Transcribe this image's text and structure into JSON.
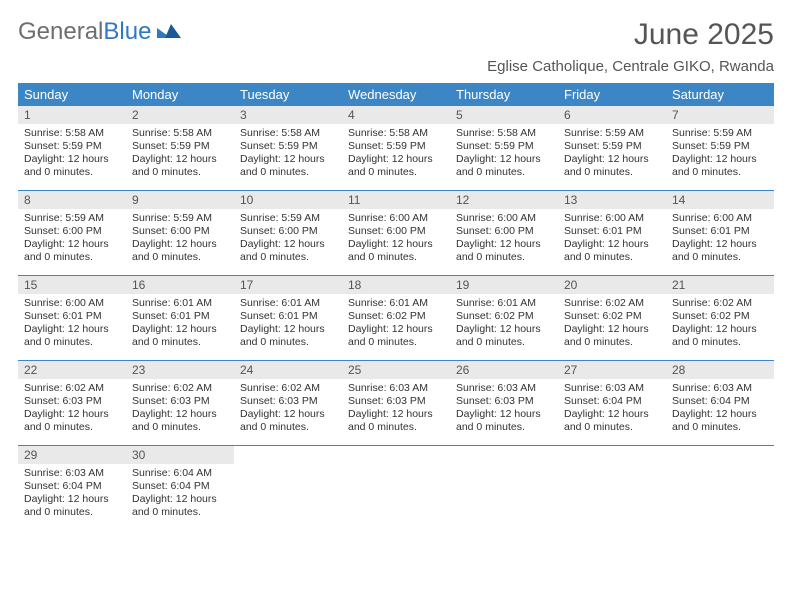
{
  "brand": {
    "part1": "General",
    "part2": "Blue"
  },
  "title": "June 2025",
  "subtitle": "Eglise Catholique, Centrale GIKO, Rwanda",
  "header_bg": "#3d86c6",
  "header_fg": "#ffffff",
  "daynum_bg": "#e9e9e9",
  "border_color": "#3d86c6",
  "text_color": "#333333",
  "day_names": [
    "Sunday",
    "Monday",
    "Tuesday",
    "Wednesday",
    "Thursday",
    "Friday",
    "Saturday"
  ],
  "weeks": [
    [
      {
        "n": "1",
        "sr": "5:58 AM",
        "ss": "5:59 PM",
        "dl": "12 hours and 0 minutes."
      },
      {
        "n": "2",
        "sr": "5:58 AM",
        "ss": "5:59 PM",
        "dl": "12 hours and 0 minutes."
      },
      {
        "n": "3",
        "sr": "5:58 AM",
        "ss": "5:59 PM",
        "dl": "12 hours and 0 minutes."
      },
      {
        "n": "4",
        "sr": "5:58 AM",
        "ss": "5:59 PM",
        "dl": "12 hours and 0 minutes."
      },
      {
        "n": "5",
        "sr": "5:58 AM",
        "ss": "5:59 PM",
        "dl": "12 hours and 0 minutes."
      },
      {
        "n": "6",
        "sr": "5:59 AM",
        "ss": "5:59 PM",
        "dl": "12 hours and 0 minutes."
      },
      {
        "n": "7",
        "sr": "5:59 AM",
        "ss": "5:59 PM",
        "dl": "12 hours and 0 minutes."
      }
    ],
    [
      {
        "n": "8",
        "sr": "5:59 AM",
        "ss": "6:00 PM",
        "dl": "12 hours and 0 minutes."
      },
      {
        "n": "9",
        "sr": "5:59 AM",
        "ss": "6:00 PM",
        "dl": "12 hours and 0 minutes."
      },
      {
        "n": "10",
        "sr": "5:59 AM",
        "ss": "6:00 PM",
        "dl": "12 hours and 0 minutes."
      },
      {
        "n": "11",
        "sr": "6:00 AM",
        "ss": "6:00 PM",
        "dl": "12 hours and 0 minutes."
      },
      {
        "n": "12",
        "sr": "6:00 AM",
        "ss": "6:00 PM",
        "dl": "12 hours and 0 minutes."
      },
      {
        "n": "13",
        "sr": "6:00 AM",
        "ss": "6:01 PM",
        "dl": "12 hours and 0 minutes."
      },
      {
        "n": "14",
        "sr": "6:00 AM",
        "ss": "6:01 PM",
        "dl": "12 hours and 0 minutes."
      }
    ],
    [
      {
        "n": "15",
        "sr": "6:00 AM",
        "ss": "6:01 PM",
        "dl": "12 hours and 0 minutes."
      },
      {
        "n": "16",
        "sr": "6:01 AM",
        "ss": "6:01 PM",
        "dl": "12 hours and 0 minutes."
      },
      {
        "n": "17",
        "sr": "6:01 AM",
        "ss": "6:01 PM",
        "dl": "12 hours and 0 minutes."
      },
      {
        "n": "18",
        "sr": "6:01 AM",
        "ss": "6:02 PM",
        "dl": "12 hours and 0 minutes."
      },
      {
        "n": "19",
        "sr": "6:01 AM",
        "ss": "6:02 PM",
        "dl": "12 hours and 0 minutes."
      },
      {
        "n": "20",
        "sr": "6:02 AM",
        "ss": "6:02 PM",
        "dl": "12 hours and 0 minutes."
      },
      {
        "n": "21",
        "sr": "6:02 AM",
        "ss": "6:02 PM",
        "dl": "12 hours and 0 minutes."
      }
    ],
    [
      {
        "n": "22",
        "sr": "6:02 AM",
        "ss": "6:03 PM",
        "dl": "12 hours and 0 minutes."
      },
      {
        "n": "23",
        "sr": "6:02 AM",
        "ss": "6:03 PM",
        "dl": "12 hours and 0 minutes."
      },
      {
        "n": "24",
        "sr": "6:02 AM",
        "ss": "6:03 PM",
        "dl": "12 hours and 0 minutes."
      },
      {
        "n": "25",
        "sr": "6:03 AM",
        "ss": "6:03 PM",
        "dl": "12 hours and 0 minutes."
      },
      {
        "n": "26",
        "sr": "6:03 AM",
        "ss": "6:03 PM",
        "dl": "12 hours and 0 minutes."
      },
      {
        "n": "27",
        "sr": "6:03 AM",
        "ss": "6:04 PM",
        "dl": "12 hours and 0 minutes."
      },
      {
        "n": "28",
        "sr": "6:03 AM",
        "ss": "6:04 PM",
        "dl": "12 hours and 0 minutes."
      }
    ],
    [
      {
        "n": "29",
        "sr": "6:03 AM",
        "ss": "6:04 PM",
        "dl": "12 hours and 0 minutes."
      },
      {
        "n": "30",
        "sr": "6:04 AM",
        "ss": "6:04 PM",
        "dl": "12 hours and 0 minutes."
      },
      null,
      null,
      null,
      null,
      null
    ]
  ],
  "labels": {
    "sunrise": "Sunrise: ",
    "sunset": "Sunset: ",
    "daylight": "Daylight: "
  }
}
